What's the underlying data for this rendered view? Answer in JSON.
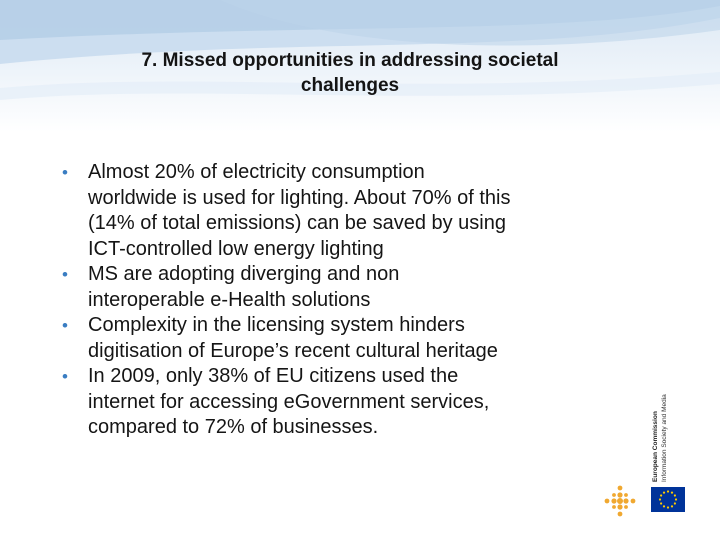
{
  "slide": {
    "title_line1": "7. Missed opportunities in addressing societal",
    "title_line2": "challenges",
    "bullets": [
      [
        "Almost 20% of electricity consumption",
        "worldwide is used for lighting. About 70% of this",
        "(14% of total emissions) can be saved by using",
        "ICT-controlled low energy lighting"
      ],
      [
        "MS are adopting diverging and non",
        "interoperable e-Health solutions"
      ],
      [
        "Complexity in the licensing system hinders",
        "digitisation of Europe’s recent cultural heritage"
      ],
      [
        "In 2009, only 38% of EU citizens used the",
        "internet for accessing eGovernment services,",
        "compared to 72% of businesses."
      ]
    ]
  },
  "branding": {
    "org_name": "European Commission",
    "dg_name": "Information Society and Media"
  },
  "colors": {
    "bullet": "#3a7dc2",
    "header_band": "#dce8f4",
    "dots_logo": "#f0a830",
    "eu_flag_blue": "#003399",
    "eu_flag_stars": "#ffcc00"
  }
}
